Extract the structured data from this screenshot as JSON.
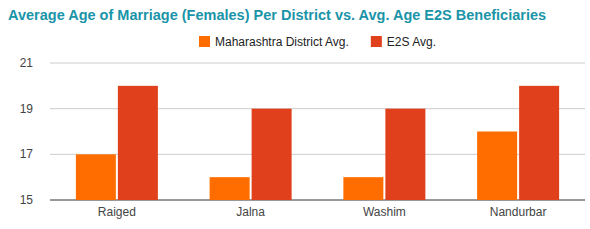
{
  "chart_data": {
    "type": "bar",
    "title": "Average Age of Marriage (Females) Per District vs. Avg. Age E2S Beneficiaries",
    "categories": [
      "Raiged",
      "Jalna",
      "Washim",
      "Nandurbar"
    ],
    "series": [
      {
        "name": "Maharashtra District Avg.",
        "color": "#ff6d01",
        "values": [
          17,
          16,
          16,
          18
        ]
      },
      {
        "name": "E2S Avg.",
        "color": "#e0401c",
        "values": [
          20,
          19,
          19,
          20
        ]
      }
    ],
    "ylim": [
      15,
      21
    ],
    "yticks": [
      15,
      17,
      19,
      21
    ],
    "grid": true,
    "legend": "top"
  }
}
